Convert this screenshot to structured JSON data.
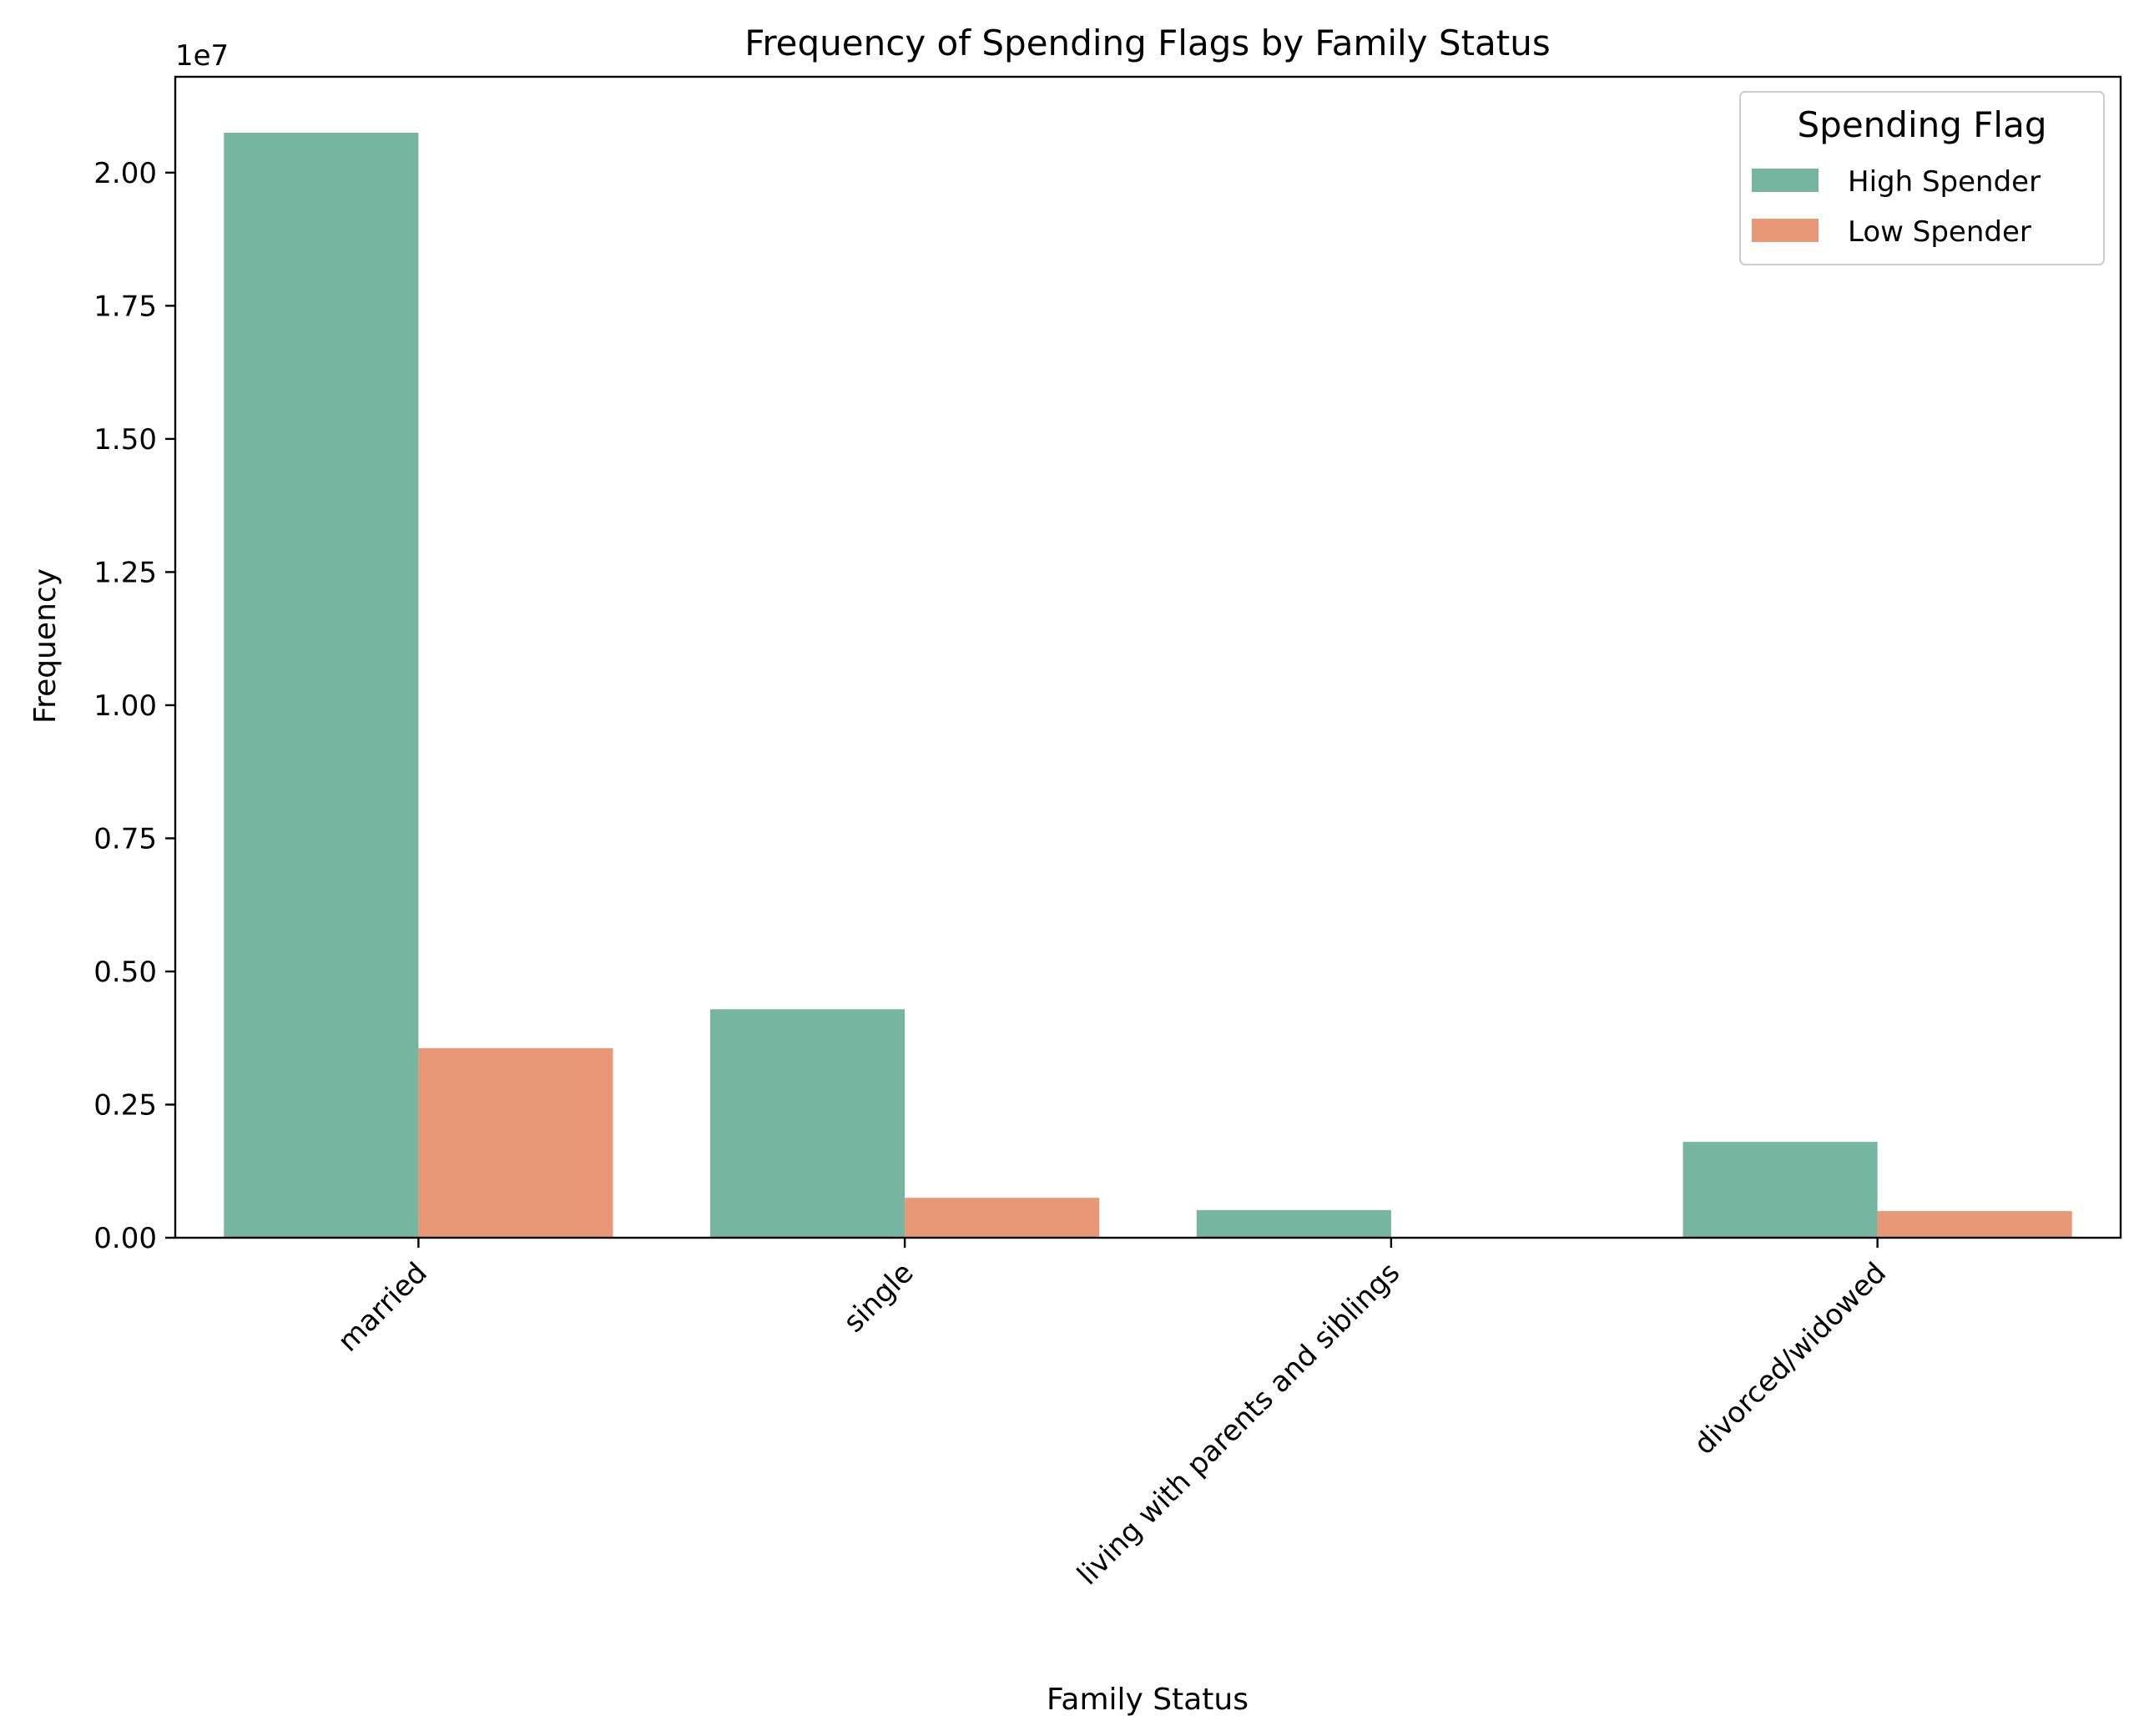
{
  "chart_data": {
    "type": "bar",
    "title": "Frequency of Spending Flags by Family Status",
    "xlabel": "Family Status",
    "ylabel": "Frequency",
    "y_offset_label": "1e7",
    "ylim": [
      0,
      21800000
    ],
    "y_ticks": [
      0,
      2500000,
      5000000,
      7500000,
      10000000,
      12500000,
      15000000,
      17500000,
      20000000
    ],
    "y_tick_labels": [
      "0.00",
      "0.25",
      "0.50",
      "0.75",
      "1.00",
      "1.25",
      "1.50",
      "1.75",
      "2.00"
    ],
    "categories": [
      "married",
      "single",
      "living with parents and siblings",
      "divorced/widowed"
    ],
    "series": [
      {
        "name": "High Spender",
        "color": "#76b5a0",
        "values": [
          20750000,
          4290000,
          520000,
          1800000
        ]
      },
      {
        "name": "Low Spender",
        "color": "#e99877",
        "values": [
          3560000,
          750000,
          0,
          500000
        ]
      }
    ],
    "legend": {
      "title": "Spending Flag",
      "placement": "top-right"
    },
    "grid": false
  }
}
